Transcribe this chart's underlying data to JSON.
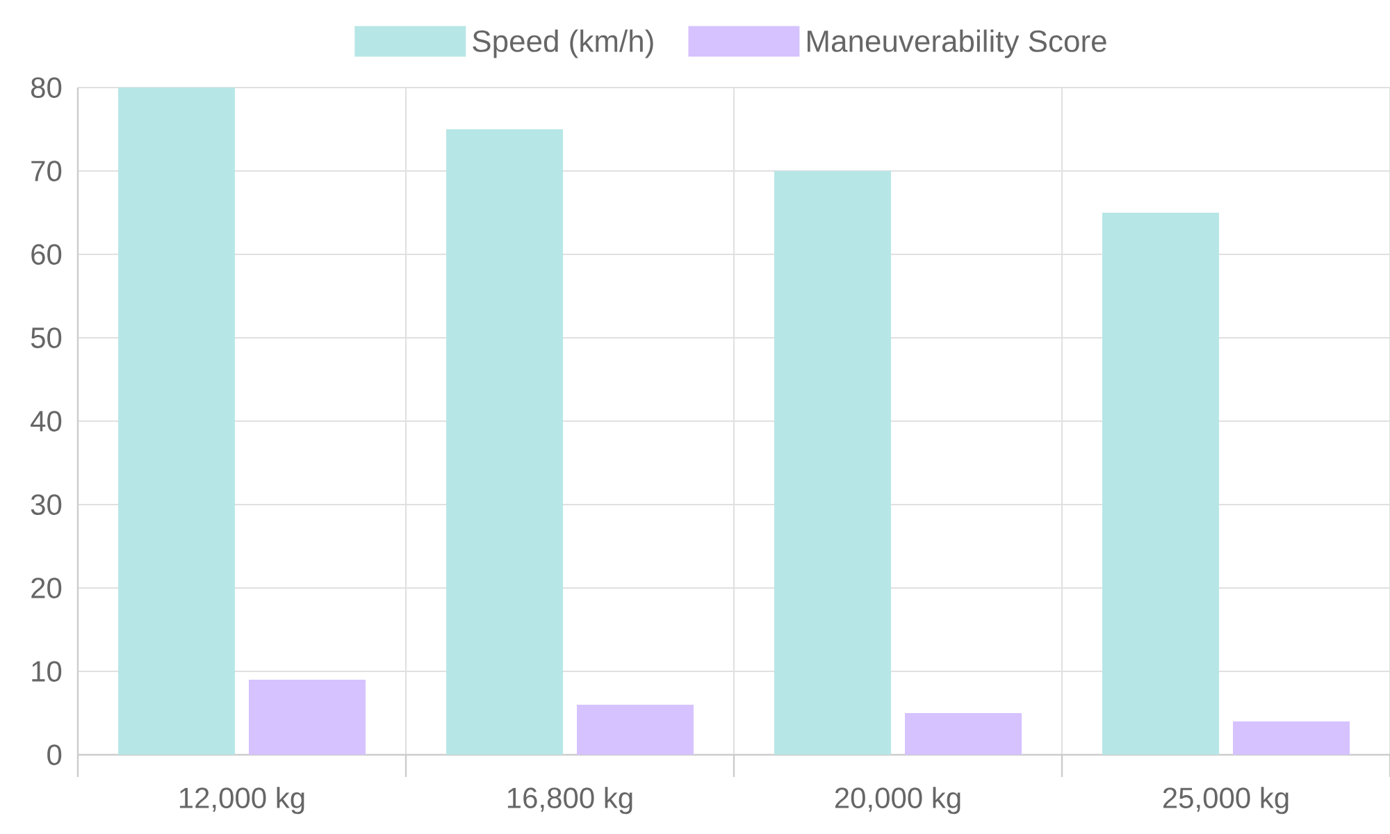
{
  "chart_data": {
    "type": "bar",
    "categories": [
      "12,000 kg",
      "16,800 kg",
      "20,000 kg",
      "25,000 kg"
    ],
    "series": [
      {
        "name": "Speed (km/h)",
        "color": "#b7e6e6",
        "values": [
          80,
          75,
          70,
          65
        ]
      },
      {
        "name": "Maneuverability Score",
        "color": "#d6c2ff",
        "values": [
          9,
          6,
          5,
          4
        ]
      }
    ],
    "ylim": [
      0,
      80
    ],
    "yticks": [
      0,
      10,
      20,
      30,
      40,
      50,
      60,
      70,
      80
    ],
    "grid": true,
    "legend": "top"
  }
}
